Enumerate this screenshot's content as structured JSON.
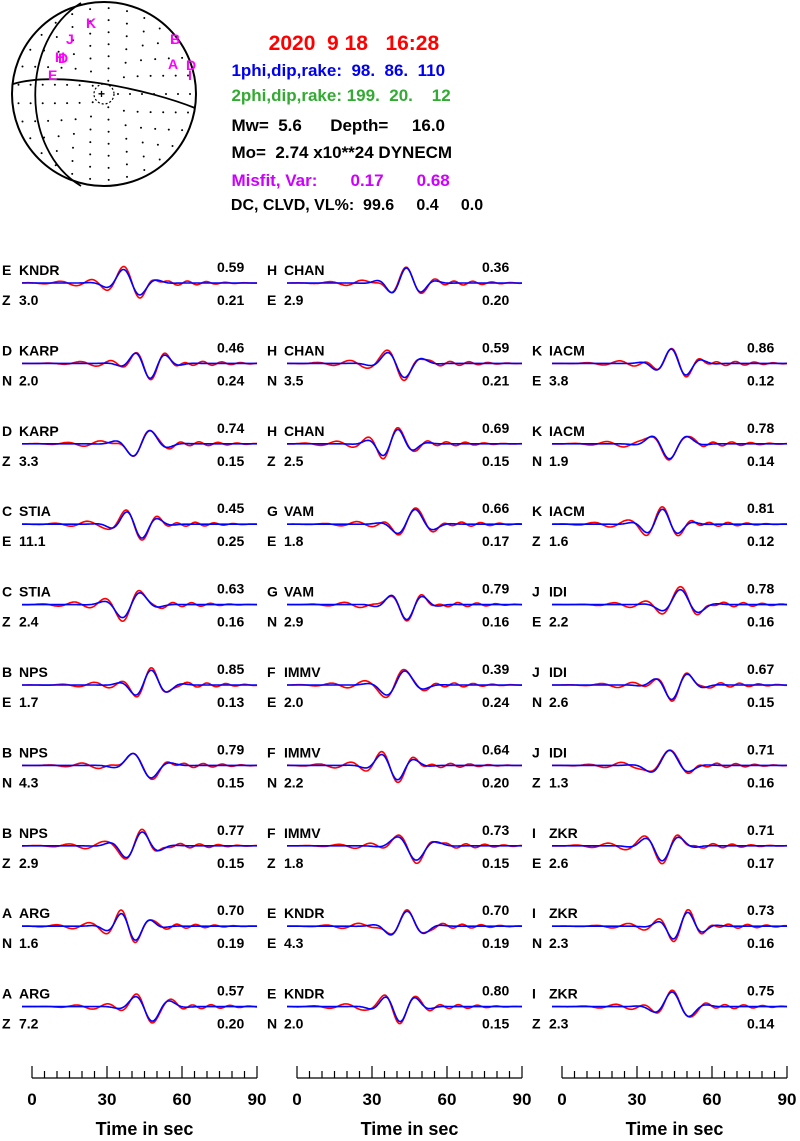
{
  "header": {
    "date": "2020  9 18",
    "time": "16:28",
    "plane1_label": "1phi,dip,rake:",
    "plane1_values": "98.  86.  110",
    "plane2_label": "2phi,dip,rake:",
    "plane2_values": "199.  20.    12",
    "mw_label": "Mw=",
    "mw_value": "5.6",
    "depth_label": "Depth=",
    "depth_value": "16.0",
    "mo_label": "Mo=",
    "mo_value": "2.74 x10**24 DYNECM",
    "misfit_label": "Misfit, Var:",
    "misfit_value": "0.17",
    "var_value": "0.68",
    "dc_label": "DC, CLVD, VL%:",
    "dc_value": "99.6",
    "clvd_value": "0.4",
    "vl_value": "0.0"
  },
  "colors": {
    "date": "#ff0000",
    "plane1": "#0000ee",
    "plane2": "#33aa33",
    "misfit": "#cc00ff",
    "station_letters": "#ff00ff",
    "observed": "#ff0000",
    "synthetic": "#0000ff",
    "text": "#000000"
  },
  "beachball": {
    "station_letters": [
      "K",
      "J",
      "H",
      "D",
      "E",
      "B",
      "A",
      "D",
      "I"
    ]
  },
  "chart_data": {
    "type": "line",
    "xlabel": "Time  in sec",
    "x_ticks": [
      0,
      30,
      60,
      90
    ],
    "xlim": [
      0,
      90
    ],
    "series_names": [
      "observed",
      "synthetic"
    ],
    "columns": [
      [
        {
          "code": "E",
          "station": "KNDR",
          "comp": "Z",
          "dist": "3.0",
          "corr": "0.59",
          "shift": "0.21"
        },
        {
          "code": "D",
          "station": "KARP",
          "comp": "N",
          "dist": "2.0",
          "corr": "0.46",
          "shift": "0.24"
        },
        {
          "code": "D",
          "station": "KARP",
          "comp": "Z",
          "dist": "3.3",
          "corr": "0.74",
          "shift": "0.15"
        },
        {
          "code": "C",
          "station": "STIA",
          "comp": "E",
          "dist": "11.1",
          "corr": "0.45",
          "shift": "0.25"
        },
        {
          "code": "C",
          "station": "STIA",
          "comp": "Z",
          "dist": "2.4",
          "corr": "0.63",
          "shift": "0.16"
        },
        {
          "code": "B",
          "station": "NPS",
          "comp": "E",
          "dist": "1.7",
          "corr": "0.85",
          "shift": "0.13"
        },
        {
          "code": "B",
          "station": "NPS",
          "comp": "N",
          "dist": "4.3",
          "corr": "0.79",
          "shift": "0.15"
        },
        {
          "code": "B",
          "station": "NPS",
          "comp": "Z",
          "dist": "2.9",
          "corr": "0.77",
          "shift": "0.15"
        },
        {
          "code": "A",
          "station": "ARG",
          "comp": "N",
          "dist": "1.6",
          "corr": "0.70",
          "shift": "0.19"
        },
        {
          "code": "A",
          "station": "ARG",
          "comp": "Z",
          "dist": "7.2",
          "corr": "0.57",
          "shift": "0.20"
        }
      ],
      [
        {
          "code": "H",
          "station": "CHAN",
          "comp": "E",
          "dist": "2.9",
          "corr": "0.36",
          "shift": "0.20"
        },
        {
          "code": "H",
          "station": "CHAN",
          "comp": "N",
          "dist": "3.5",
          "corr": "0.59",
          "shift": "0.21"
        },
        {
          "code": "H",
          "station": "CHAN",
          "comp": "Z",
          "dist": "2.5",
          "corr": "0.69",
          "shift": "0.15"
        },
        {
          "code": "G",
          "station": "VAM",
          "comp": "E",
          "dist": "1.8",
          "corr": "0.66",
          "shift": "0.17"
        },
        {
          "code": "G",
          "station": "VAM",
          "comp": "N",
          "dist": "2.9",
          "corr": "0.79",
          "shift": "0.16"
        },
        {
          "code": "F",
          "station": "IMMV",
          "comp": "E",
          "dist": "2.0",
          "corr": "0.39",
          "shift": "0.24"
        },
        {
          "code": "F",
          "station": "IMMV",
          "comp": "N",
          "dist": "2.2",
          "corr": "0.64",
          "shift": "0.20"
        },
        {
          "code": "F",
          "station": "IMMV",
          "comp": "Z",
          "dist": "1.8",
          "corr": "0.73",
          "shift": "0.15"
        },
        {
          "code": "E",
          "station": "KNDR",
          "comp": "E",
          "dist": "4.3",
          "corr": "0.70",
          "shift": "0.19"
        },
        {
          "code": "E",
          "station": "KNDR",
          "comp": "N",
          "dist": "2.0",
          "corr": "0.80",
          "shift": "0.15"
        }
      ],
      [
        null,
        {
          "code": "K",
          "station": "IACM",
          "comp": "E",
          "dist": "3.8",
          "corr": "0.86",
          "shift": "0.12"
        },
        {
          "code": "K",
          "station": "IACM",
          "comp": "N",
          "dist": "1.9",
          "corr": "0.78",
          "shift": "0.14"
        },
        {
          "code": "K",
          "station": "IACM",
          "comp": "Z",
          "dist": "1.6",
          "corr": "0.81",
          "shift": "0.12"
        },
        {
          "code": "J",
          "station": "IDI",
          "comp": "E",
          "dist": "2.2",
          "corr": "0.78",
          "shift": "0.16"
        },
        {
          "code": "J",
          "station": "IDI",
          "comp": "N",
          "dist": "2.6",
          "corr": "0.67",
          "shift": "0.15"
        },
        {
          "code": "J",
          "station": "IDI",
          "comp": "Z",
          "dist": "1.3",
          "corr": "0.71",
          "shift": "0.16"
        },
        {
          "code": "I",
          "station": "ZKR",
          "comp": "E",
          "dist": "2.6",
          "corr": "0.71",
          "shift": "0.17"
        },
        {
          "code": "I",
          "station": "ZKR",
          "comp": "N",
          "dist": "2.3",
          "corr": "0.73",
          "shift": "0.16"
        },
        {
          "code": "I",
          "station": "ZKR",
          "comp": "Z",
          "dist": "2.3",
          "corr": "0.75",
          "shift": "0.14"
        }
      ]
    ]
  }
}
